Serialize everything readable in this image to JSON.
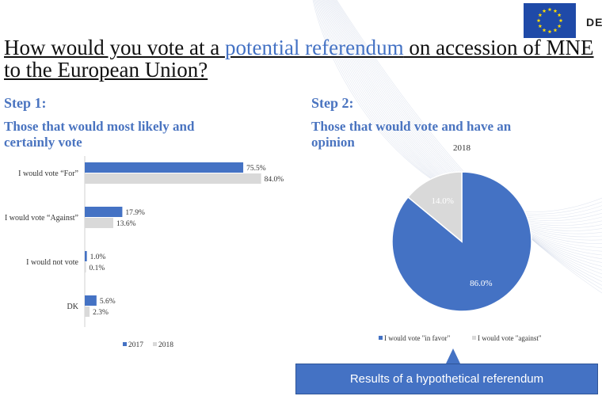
{
  "header": {
    "brand": "DE",
    "title_parts": [
      "How would you vote at a ",
      "potential referendum",
      " on accession of MNE to the European Union?"
    ],
    "accent_color": "#4472c4"
  },
  "step1": {
    "heading": "Step 1:",
    "subheading": "Those that would most likely and certainly vote"
  },
  "step2": {
    "heading": "Step 2:",
    "subheading": "Those that would vote and have an opinion"
  },
  "banner": {
    "label": "Results of a hypothetical referendum"
  },
  "icons": {
    "flag": "eu-flag-icon"
  },
  "chart_data": [
    {
      "type": "bar",
      "orientation": "horizontal",
      "categories": [
        "I would vote “For”",
        "I would vote “Against”",
        "I would not vote",
        "DK"
      ],
      "series": [
        {
          "name": "2017",
          "values": [
            75.5,
            17.9,
            1.0,
            5.6
          ],
          "labels": [
            "75.5%",
            "17.9%",
            "1.0%",
            "5.6%"
          ],
          "color": "#4472c4"
        },
        {
          "name": "2018",
          "values": [
            84.0,
            13.6,
            0.1,
            2.3
          ],
          "labels": [
            "84.0%",
            "13.6%",
            "0.1%",
            "2.3%"
          ],
          "color": "#d9d9d9"
        }
      ],
      "xlim": [
        0,
        100
      ],
      "grid": false,
      "legend": "bottom"
    },
    {
      "type": "pie",
      "title": "2018",
      "labels": [
        "I would vote \"in favor\"",
        "I would vote \"against\""
      ],
      "values": [
        86.0,
        14.0
      ],
      "value_labels": [
        "86.0%",
        "14.0%"
      ],
      "colors": [
        "#4472c4",
        "#d9d9d9"
      ],
      "legend": "bottom"
    }
  ]
}
